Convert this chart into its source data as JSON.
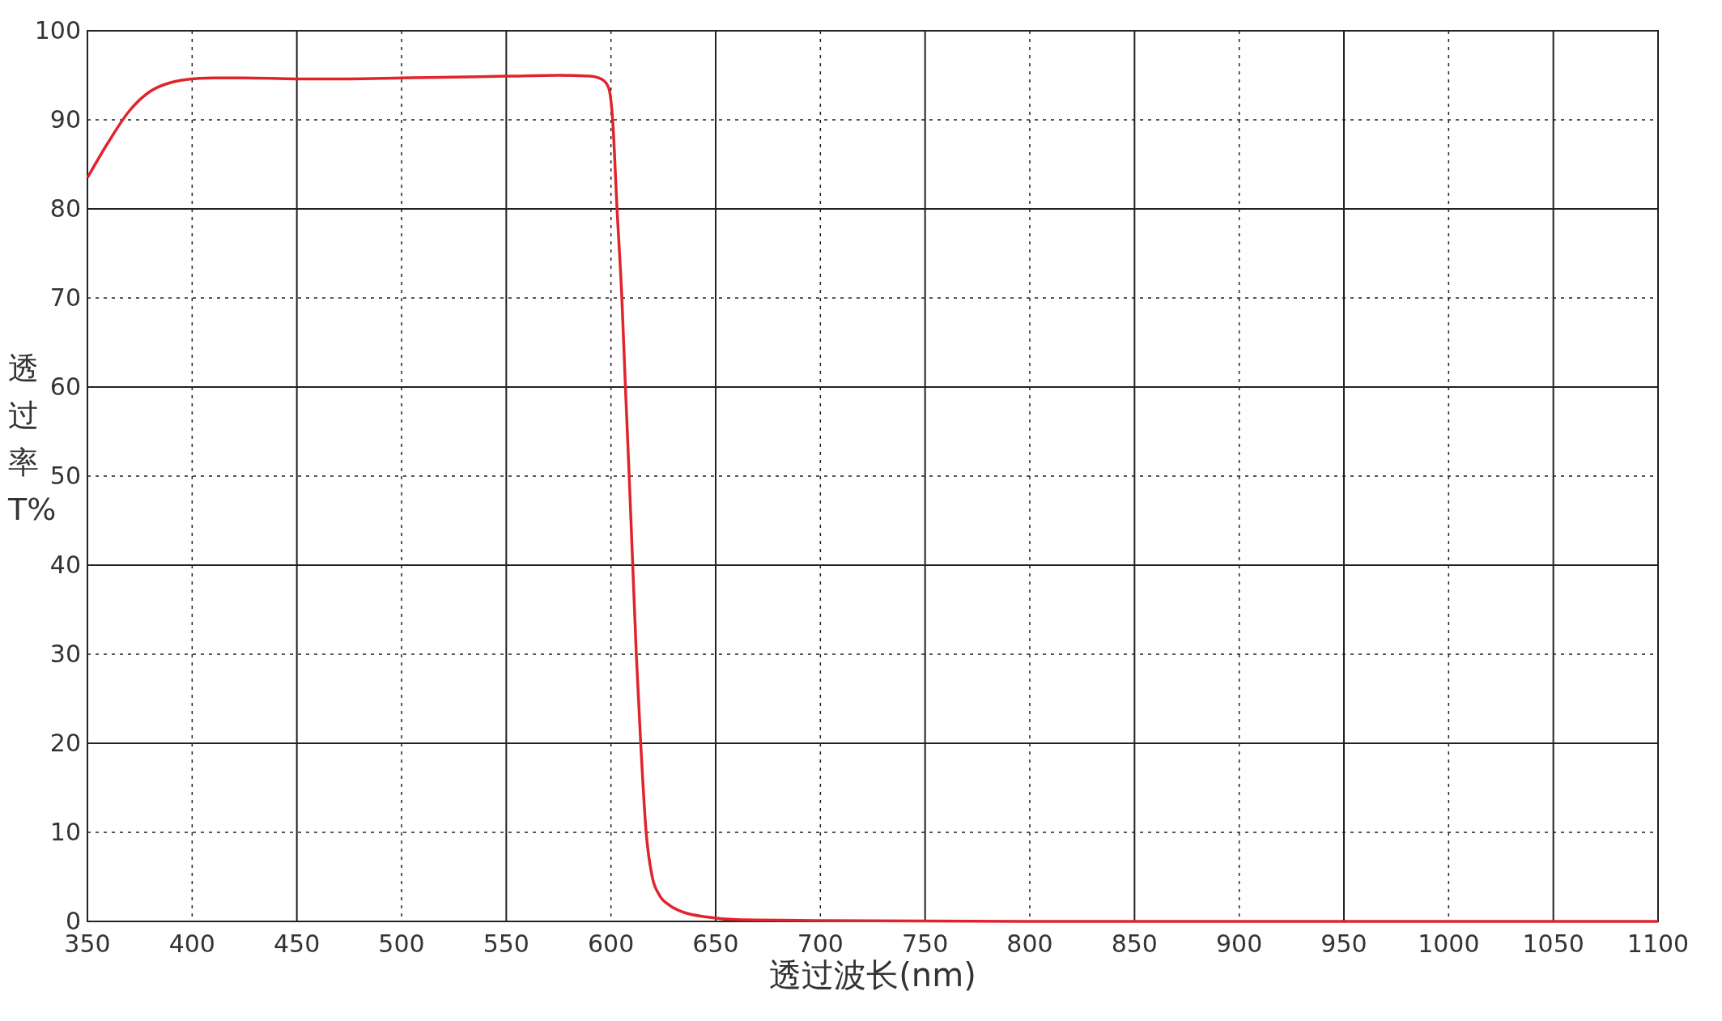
{
  "chart_data": {
    "type": "line",
    "xlabel": "透过波长(nm)",
    "ylabel": "透过率T%",
    "series": [
      {
        "color": "#e0242c",
        "x": [
          350,
          360,
          370,
          380,
          390,
          400,
          410,
          425,
          450,
          475,
          500,
          525,
          550,
          575,
          590,
          596,
          599,
          600.8,
          602.9,
          605.2,
          606.9,
          608.7,
          610.4,
          612.1,
          614.2,
          616.8,
          619.7,
          623,
          628,
          635,
          645.7,
          660,
          700,
          800,
          1100
        ],
        "values": [
          83.5,
          87.5,
          91,
          93.2,
          94.2,
          94.6,
          94.7,
          94.7,
          94.6,
          94.6,
          94.7,
          94.8,
          94.9,
          95,
          94.9,
          94.5,
          93.5,
          90,
          80,
          70,
          60,
          50,
          40,
          30,
          20,
          10,
          5,
          3,
          1.8,
          1,
          0.5,
          0.2,
          0.1,
          0,
          0
        ]
      }
    ],
    "xlim": [
      350,
      1100
    ],
    "xticks": [
      350,
      400,
      450,
      500,
      550,
      600,
      650,
      700,
      750,
      800,
      850,
      900,
      950,
      1000,
      1050,
      1100
    ],
    "ylim": [
      0,
      100
    ],
    "yticks": [
      0,
      10,
      20,
      30,
      40,
      50,
      60,
      70,
      80,
      90,
      100
    ],
    "grid": true,
    "line_style": "solid"
  }
}
